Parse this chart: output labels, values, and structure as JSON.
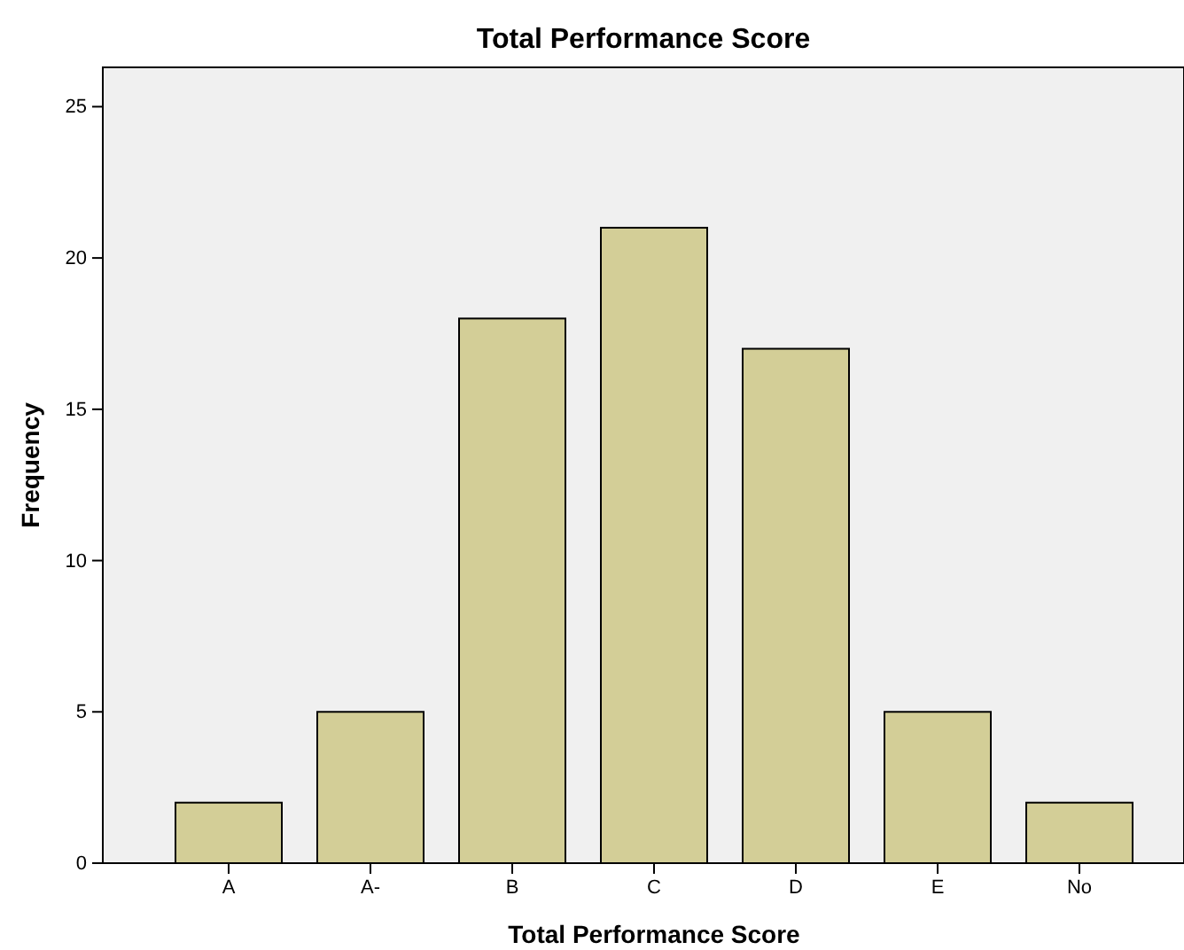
{
  "chart_data": {
    "type": "bar",
    "title": "Total Performance Score",
    "xlabel": "Total Performance Score",
    "ylabel": "Frequency",
    "categories": [
      "A",
      "A-",
      "B",
      "C",
      "D",
      "E",
      "No"
    ],
    "values": [
      2,
      5,
      18,
      21,
      17,
      5,
      2
    ],
    "color": "#d3ce97",
    "ylim": [
      0,
      26.3
    ],
    "yticks": [
      0,
      5,
      10,
      15,
      20,
      25
    ],
    "grid": false
  }
}
